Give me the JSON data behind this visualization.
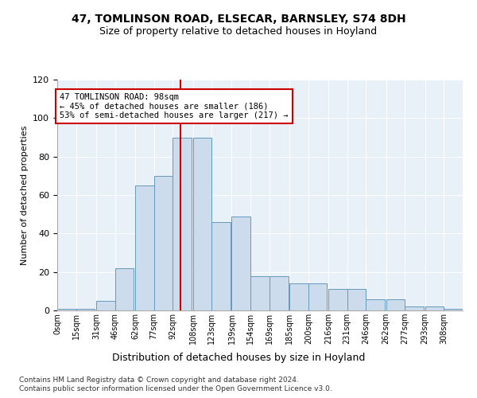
{
  "title1": "47, TOMLINSON ROAD, ELSECAR, BARNSLEY, S74 8DH",
  "title2": "Size of property relative to detached houses in Hoyland",
  "xlabel": "Distribution of detached houses by size in Hoyland",
  "ylabel": "Number of detached properties",
  "bins": [
    0,
    15,
    31,
    46,
    62,
    77,
    92,
    108,
    123,
    139,
    154,
    169,
    185,
    200,
    216,
    231,
    246,
    262,
    277,
    293,
    308
  ],
  "values": [
    1,
    1,
    5,
    22,
    65,
    70,
    90,
    90,
    46,
    49,
    18,
    18,
    14,
    14,
    11,
    11,
    6,
    6,
    2,
    2,
    1
  ],
  "bin_labels": [
    "0sqm",
    "15sqm",
    "31sqm",
    "46sqm",
    "62sqm",
    "77sqm",
    "92sqm",
    "108sqm",
    "123sqm",
    "139sqm",
    "154sqm",
    "169sqm",
    "185sqm",
    "200sqm",
    "216sqm",
    "231sqm",
    "246sqm",
    "262sqm",
    "277sqm",
    "293sqm",
    "308sqm"
  ],
  "bar_color": "#ccdcec",
  "bar_edge_color": "#6699bb",
  "vline_x": 98,
  "vline_color": "#cc0000",
  "annotation_text": "47 TOMLINSON ROAD: 98sqm\n← 45% of detached houses are smaller (186)\n53% of semi-detached houses are larger (217) →",
  "annotation_box_color": "#ffffff",
  "annotation_box_edge": "#cc0000",
  "ylim": [
    0,
    120
  ],
  "yticks": [
    0,
    20,
    40,
    60,
    80,
    100,
    120
  ],
  "background_color": "#e8f0f8",
  "footnote1": "Contains HM Land Registry data © Crown copyright and database right 2024.",
  "footnote2": "Contains public sector information licensed under the Open Government Licence v3.0."
}
